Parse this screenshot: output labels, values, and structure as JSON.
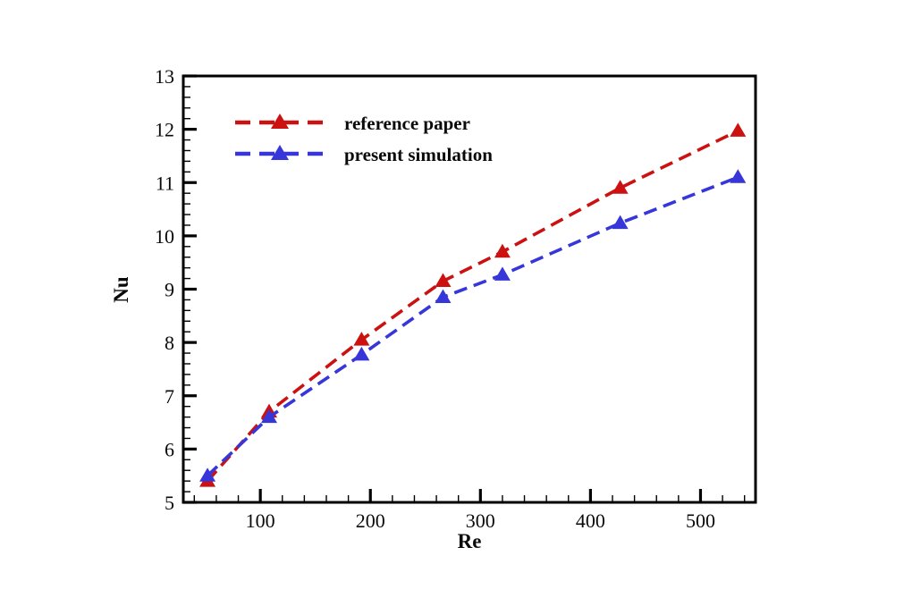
{
  "chart_data": {
    "type": "line",
    "title": "",
    "xlabel": "Re",
    "ylabel": "Nu",
    "xlim": [
      30,
      550
    ],
    "ylim": [
      5,
      13
    ],
    "x_major_ticks": [
      100,
      200,
      300,
      400,
      500
    ],
    "x_minor_step": 20,
    "y_major_ticks": [
      5,
      6,
      7,
      8,
      9,
      10,
      11,
      12,
      13
    ],
    "y_minor_step": 0.2,
    "grid": false,
    "legend_position": "upper-left-inside",
    "frame_color": "#000000",
    "x": [
      52,
      108,
      192,
      266,
      320,
      427,
      534
    ],
    "series": [
      {
        "name": "reference paper",
        "color": "#cc1111",
        "marker": "triangle-up",
        "linestyle": "dashed",
        "values": [
          5.4,
          6.7,
          8.05,
          9.15,
          9.7,
          10.9,
          11.97
        ]
      },
      {
        "name": "present simulation",
        "color": "#3636d9",
        "marker": "triangle-up",
        "linestyle": "dashed",
        "values": [
          5.5,
          6.6,
          7.77,
          8.85,
          9.27,
          10.24,
          11.1
        ]
      }
    ]
  }
}
